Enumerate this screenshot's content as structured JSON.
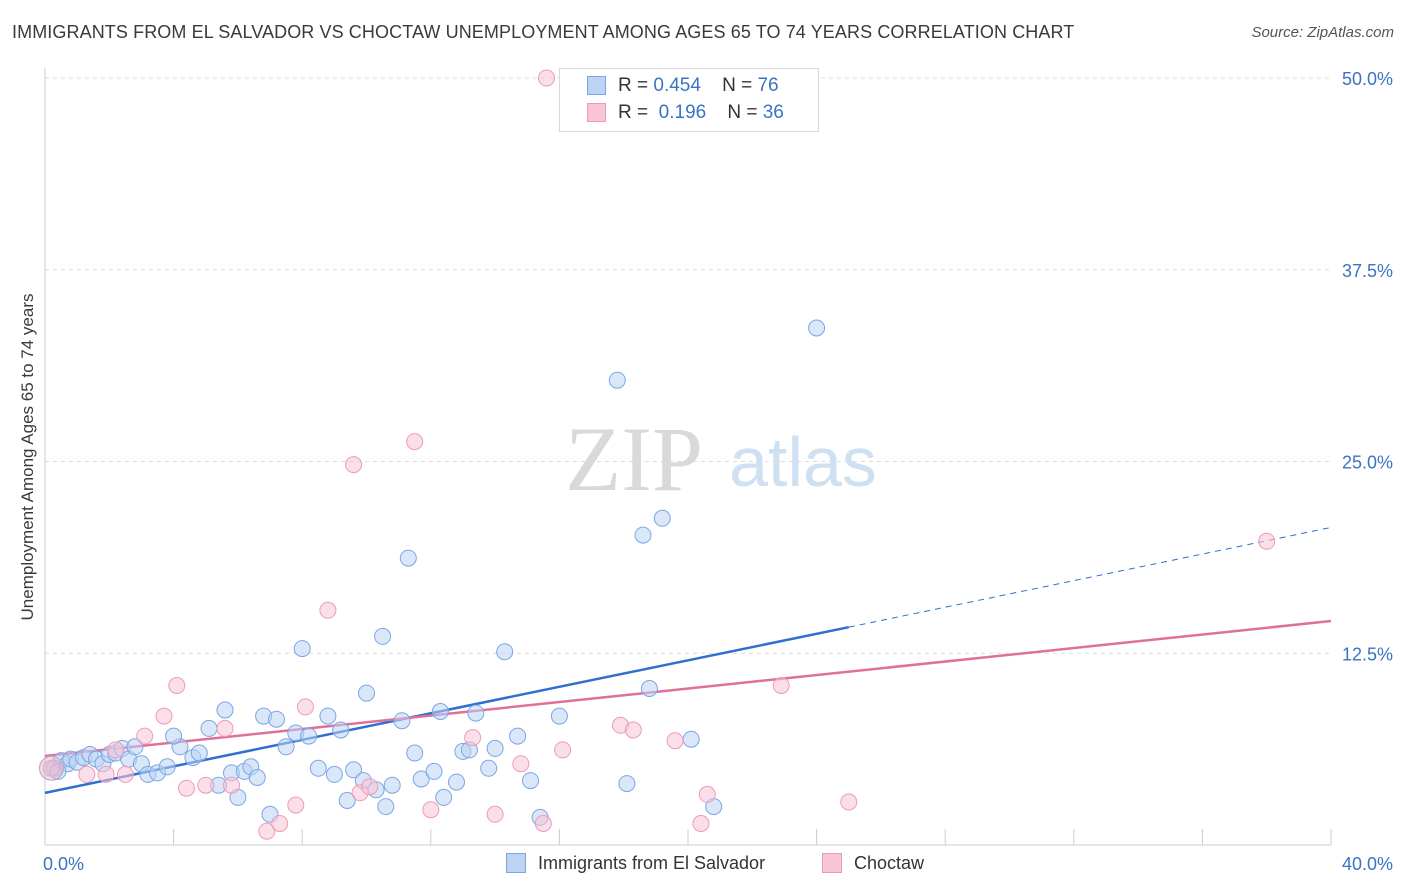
{
  "title": "IMMIGRANTS FROM EL SALVADOR VS CHOCTAW UNEMPLOYMENT AMONG AGES 65 TO 74 YEARS CORRELATION CHART",
  "source": "Source: ZipAtlas.com",
  "watermark": {
    "zip": "ZIP",
    "atlas": "atlas"
  },
  "legend": {
    "rows": [
      {
        "r_label": "R =",
        "r_value": "0.454",
        "n_label": "N =",
        "n_value": "76"
      },
      {
        "r_label": "R =",
        "r_value": "0.196",
        "n_label": "N =",
        "n_value": "36"
      }
    ]
  },
  "bottom_legend": [
    "Immigrants from El Salvador",
    "Choctaw"
  ],
  "chart_data": {
    "type": "scatter",
    "title": "IMMIGRANTS FROM EL SALVADOR VS CHOCTAW UNEMPLOYMENT AMONG AGES 65 TO 74 YEARS CORRELATION CHART",
    "xlabel": "",
    "ylabel": "Unemployment Among Ages 65 to 74 years",
    "xlim": [
      0,
      40
    ],
    "ylim": [
      0,
      50
    ],
    "x_tick_labels": [
      {
        "value": 0,
        "label": "0.0%"
      },
      {
        "value": 40,
        "label": "40.0%"
      }
    ],
    "y_tick_labels": [
      {
        "value": 12.5,
        "label": "12.5%"
      },
      {
        "value": 25,
        "label": "25.0%"
      },
      {
        "value": 37.5,
        "label": "37.5%"
      },
      {
        "value": 50,
        "label": "50.0%"
      }
    ],
    "x_minor_ticks": [
      4,
      8,
      12,
      16,
      20,
      24,
      28,
      32,
      36,
      40
    ],
    "grid": true,
    "series": [
      {
        "name": "Immigrants from El Salvador",
        "color": "#7aa6e6",
        "fill": "#bcd3f3",
        "line_color": "#2f6fd0",
        "trend": {
          "x0": 0,
          "y0": 3.4,
          "x1": 25,
          "y1": 14.2,
          "x_end": 40,
          "y_end": 20.7
        },
        "points": [
          [
            0.3,
            5.0
          ],
          [
            0.5,
            5.5
          ],
          [
            0.7,
            5.3
          ],
          [
            0.8,
            5.6
          ],
          [
            1.0,
            5.4
          ],
          [
            1.2,
            5.7
          ],
          [
            1.4,
            5.9
          ],
          [
            1.6,
            5.6
          ],
          [
            1.8,
            5.3
          ],
          [
            2.0,
            5.9
          ],
          [
            2.2,
            6.0
          ],
          [
            2.4,
            6.3
          ],
          [
            2.6,
            5.6
          ],
          [
            2.8,
            6.4
          ],
          [
            3.0,
            5.3
          ],
          [
            3.2,
            4.6
          ],
          [
            3.5,
            4.7
          ],
          [
            3.8,
            5.1
          ],
          [
            4.2,
            6.4
          ],
          [
            4.0,
            7.1
          ],
          [
            4.6,
            5.7
          ],
          [
            4.8,
            6.0
          ],
          [
            5.1,
            7.6
          ],
          [
            5.4,
            3.9
          ],
          [
            5.6,
            8.8
          ],
          [
            5.8,
            4.7
          ],
          [
            6.0,
            3.1
          ],
          [
            6.2,
            4.8
          ],
          [
            6.4,
            5.1
          ],
          [
            6.6,
            4.4
          ],
          [
            6.8,
            8.4
          ],
          [
            7.0,
            2.0
          ],
          [
            7.2,
            8.2
          ],
          [
            7.5,
            6.4
          ],
          [
            7.8,
            7.3
          ],
          [
            8.0,
            12.8
          ],
          [
            8.2,
            7.1
          ],
          [
            8.5,
            5.0
          ],
          [
            8.8,
            8.4
          ],
          [
            9.0,
            4.6
          ],
          [
            9.2,
            7.5
          ],
          [
            9.4,
            2.9
          ],
          [
            9.6,
            4.9
          ],
          [
            9.9,
            4.2
          ],
          [
            10.0,
            9.9
          ],
          [
            10.3,
            3.6
          ],
          [
            10.5,
            13.6
          ],
          [
            10.6,
            2.5
          ],
          [
            10.8,
            3.9
          ],
          [
            11.1,
            8.1
          ],
          [
            11.3,
            18.7
          ],
          [
            11.5,
            6.0
          ],
          [
            11.7,
            4.3
          ],
          [
            12.1,
            4.8
          ],
          [
            12.3,
            8.7
          ],
          [
            12.4,
            3.1
          ],
          [
            12.8,
            4.1
          ],
          [
            13.0,
            6.1
          ],
          [
            13.2,
            6.2
          ],
          [
            13.4,
            8.6
          ],
          [
            13.8,
            5.0
          ],
          [
            14.0,
            6.3
          ],
          [
            14.3,
            12.6
          ],
          [
            14.7,
            7.1
          ],
          [
            15.1,
            4.2
          ],
          [
            15.4,
            1.8
          ],
          [
            16.0,
            8.4
          ],
          [
            17.8,
            30.3
          ],
          [
            18.1,
            4.0
          ],
          [
            18.6,
            20.2
          ],
          [
            18.8,
            10.2
          ],
          [
            19.2,
            21.3
          ],
          [
            20.1,
            6.9
          ],
          [
            20.8,
            2.5
          ],
          [
            24.0,
            33.7
          ],
          [
            0.4,
            4.8
          ]
        ]
      },
      {
        "name": "Choctaw",
        "color": "#ee9ab6",
        "fill": "#f8c5d6",
        "line_color": "#e0709a",
        "trend": {
          "x0": 0,
          "y0": 5.8,
          "x1": 40,
          "y1": 14.6
        },
        "points": [
          [
            0.2,
            5.0
          ],
          [
            1.3,
            4.6
          ],
          [
            1.9,
            4.6
          ],
          [
            2.2,
            6.2
          ],
          [
            2.5,
            4.6
          ],
          [
            3.1,
            7.1
          ],
          [
            3.7,
            8.4
          ],
          [
            4.1,
            10.4
          ],
          [
            4.4,
            3.7
          ],
          [
            5.0,
            3.9
          ],
          [
            5.6,
            7.6
          ],
          [
            5.8,
            3.9
          ],
          [
            6.9,
            0.9
          ],
          [
            7.3,
            1.4
          ],
          [
            7.8,
            2.6
          ],
          [
            8.1,
            9.0
          ],
          [
            8.8,
            15.3
          ],
          [
            9.6,
            24.8
          ],
          [
            9.8,
            3.4
          ],
          [
            10.1,
            3.8
          ],
          [
            11.5,
            26.3
          ],
          [
            12.0,
            2.3
          ],
          [
            13.3,
            7.0
          ],
          [
            14.0,
            2.0
          ],
          [
            14.8,
            5.3
          ],
          [
            15.5,
            1.4
          ],
          [
            16.1,
            6.2
          ],
          [
            17.9,
            7.8
          ],
          [
            18.3,
            7.5
          ],
          [
            19.6,
            6.8
          ],
          [
            20.4,
            1.4
          ],
          [
            20.6,
            3.3
          ],
          [
            22.9,
            10.4
          ],
          [
            25.0,
            2.8
          ],
          [
            38.0,
            19.8
          ],
          [
            15.6,
            50.0
          ]
        ]
      }
    ]
  }
}
